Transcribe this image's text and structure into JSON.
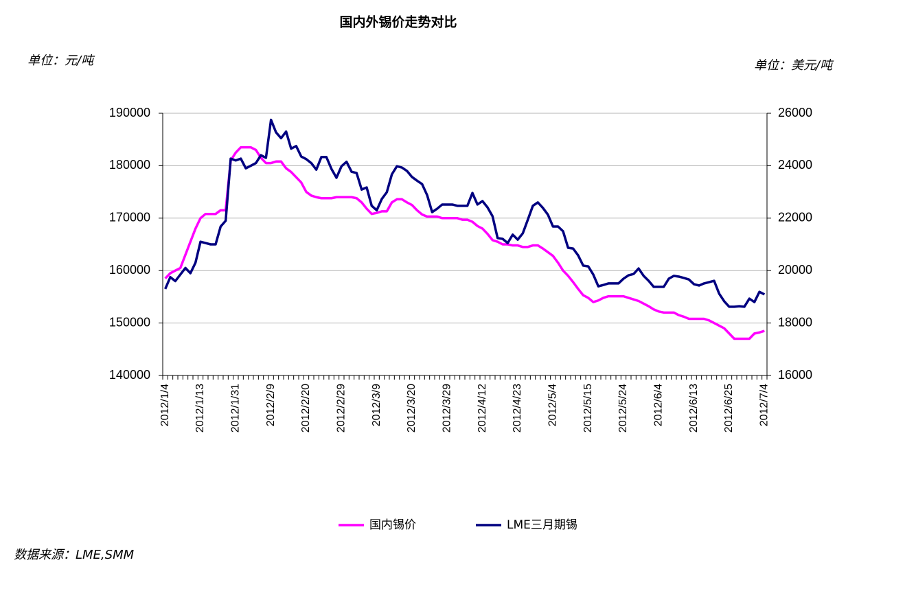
{
  "chart_data": {
    "type": "line",
    "title": "国内外锡价走势对比",
    "y_unit": "单位：元/吨",
    "y2_unit": "单位：美元/吨",
    "source": "数据来源：LME,SMM",
    "legend": "bottom",
    "grid": true,
    "ylim": [
      140000,
      190000
    ],
    "yticks": [
      140000,
      150000,
      160000,
      170000,
      180000,
      190000
    ],
    "y2lim": [
      16000,
      26000
    ],
    "y2ticks": [
      16000,
      18000,
      20000,
      22000,
      24000,
      26000
    ],
    "categories": [
      "2012/1/4",
      null,
      null,
      null,
      null,
      null,
      null,
      "2012/1/13",
      null,
      null,
      null,
      null,
      null,
      null,
      "2012/1/31",
      null,
      null,
      null,
      null,
      null,
      null,
      "2012/2/9",
      null,
      null,
      null,
      null,
      null,
      null,
      "2012/2/20",
      null,
      null,
      null,
      null,
      null,
      null,
      "2012/2/29",
      null,
      null,
      null,
      null,
      null,
      null,
      "2012/3/9",
      null,
      null,
      null,
      null,
      null,
      null,
      "2012/3/20",
      null,
      null,
      null,
      null,
      null,
      null,
      "2012/3/29",
      null,
      null,
      null,
      null,
      null,
      null,
      "2012/4/12",
      null,
      null,
      null,
      null,
      null,
      null,
      "2012/4/23",
      null,
      null,
      null,
      null,
      null,
      null,
      "2012/5/4",
      null,
      null,
      null,
      null,
      null,
      null,
      "2012/5/15",
      null,
      null,
      null,
      null,
      null,
      null,
      "2012/5/24",
      null,
      null,
      null,
      null,
      null,
      null,
      "2012/6/4",
      null,
      null,
      null,
      null,
      null,
      null,
      "2012/6/13",
      null,
      null,
      null,
      null,
      null,
      null,
      "2012/6/25",
      null,
      null,
      null,
      null,
      null,
      null,
      "2012/7/4"
    ],
    "series": [
      {
        "name": "国内锡价",
        "color": "#ff00ff",
        "axis": "y",
        "values": [
          158500,
          159500,
          160000,
          160500,
          163000,
          165500,
          168000,
          170000,
          170800,
          170800,
          170800,
          171500,
          171500,
          181000,
          182500,
          183500,
          183500,
          183500,
          183000,
          181500,
          180500,
          180500,
          180800,
          180800,
          179500,
          178800,
          177800,
          176800,
          175000,
          174300,
          174000,
          173800,
          173800,
          173800,
          174000,
          174000,
          174000,
          174000,
          173800,
          173000,
          171800,
          170800,
          171000,
          171300,
          171300,
          173000,
          173600,
          173600,
          173000,
          172500,
          171500,
          170700,
          170300,
          170300,
          170300,
          170000,
          170000,
          170000,
          170000,
          169700,
          169700,
          169300,
          168500,
          168000,
          167000,
          165800,
          165500,
          165000,
          165000,
          164800,
          164800,
          164500,
          164500,
          164800,
          164800,
          164200,
          163500,
          162800,
          161500,
          160000,
          159000,
          157800,
          156500,
          155300,
          154800,
          154000,
          154300,
          154800,
          155100,
          155100,
          155100,
          155100,
          154800,
          154500,
          154200,
          153700,
          153200,
          152600,
          152200,
          152000,
          152000,
          152000,
          151500,
          151200,
          150800,
          150800,
          150800,
          150800,
          150500,
          150000,
          149500,
          149000,
          148000,
          147000,
          147000,
          147000,
          147000,
          148000,
          148200,
          148500
        ]
      },
      {
        "name": "LME三月期锡",
        "color": "#000080",
        "axis": "y2",
        "values": [
          19300,
          19750,
          19600,
          19850,
          20100,
          19900,
          20300,
          21100,
          21050,
          21000,
          21000,
          21680,
          21900,
          24270,
          24200,
          24270,
          23900,
          24000,
          24100,
          24400,
          24300,
          25750,
          25270,
          25050,
          25300,
          24650,
          24750,
          24350,
          24250,
          24100,
          23850,
          24330,
          24330,
          23880,
          23540,
          23980,
          24150,
          23770,
          23720,
          23090,
          23170,
          22470,
          22300,
          22730,
          22990,
          23670,
          23980,
          23930,
          23800,
          23570,
          23430,
          23300,
          22880,
          22230,
          22360,
          22520,
          22520,
          22520,
          22470,
          22470,
          22470,
          22960,
          22520,
          22650,
          22410,
          22070,
          21240,
          21210,
          21050,
          21370,
          21180,
          21420,
          21940,
          22470,
          22600,
          22390,
          22130,
          21680,
          21680,
          21500,
          20870,
          20840,
          20580,
          20190,
          20160,
          19850,
          19400,
          19450,
          19510,
          19510,
          19510,
          19690,
          19820,
          19870,
          20080,
          19800,
          19610,
          19380,
          19380,
          19380,
          19690,
          19800,
          19770,
          19720,
          19660,
          19480,
          19430,
          19510,
          19560,
          19610,
          19120,
          18830,
          18620,
          18620,
          18640,
          18620,
          18930,
          18800,
          19190,
          19090
        ]
      }
    ]
  }
}
